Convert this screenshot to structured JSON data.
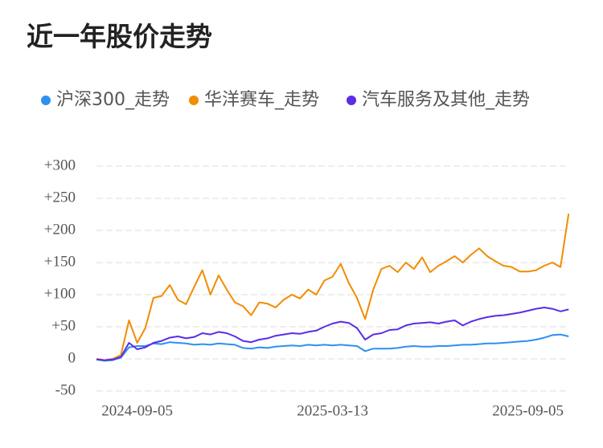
{
  "chart_data": {
    "type": "line",
    "title": "近一年股价走势",
    "categories": [
      null,
      null,
      null,
      null,
      null,
      "2024-09-05",
      null,
      null,
      null,
      null,
      null,
      null,
      null,
      null,
      null,
      null,
      null,
      null,
      null,
      null,
      null,
      null,
      null,
      null,
      null,
      null,
      null,
      null,
      null,
      "2025-03-13",
      null,
      null,
      null,
      null,
      null,
      null,
      null,
      null,
      null,
      null,
      null,
      null,
      null,
      null,
      null,
      null,
      null,
      null,
      null,
      null,
      null,
      null,
      null,
      "2025-09-05",
      null,
      null,
      null,
      null,
      null
    ],
    "series": [
      {
        "name": "沪深300_走势",
        "color": "#2f8ff0",
        "values": [
          -1,
          -3,
          -2,
          2,
          18,
          20,
          20,
          24,
          23,
          26,
          25,
          24,
          22,
          23,
          22,
          24,
          23,
          22,
          17,
          16,
          18,
          17,
          19,
          20,
          21,
          20,
          22,
          21,
          22,
          21,
          22,
          21,
          20,
          12,
          16,
          16,
          16,
          17,
          19,
          20,
          19,
          19,
          20,
          20,
          21,
          22,
          22,
          23,
          24,
          24,
          25,
          26,
          27,
          28,
          30,
          33,
          37,
          38,
          35
        ]
      },
      {
        "name": "华洋赛车_走势",
        "color": "#f28c00",
        "values": [
          0,
          -2,
          0,
          6,
          60,
          25,
          48,
          95,
          98,
          115,
          92,
          85,
          112,
          138,
          100,
          130,
          108,
          88,
          82,
          68,
          88,
          86,
          80,
          92,
          100,
          94,
          108,
          100,
          122,
          128,
          148,
          118,
          95,
          62,
          108,
          140,
          145,
          135,
          150,
          140,
          158,
          135,
          145,
          152,
          160,
          150,
          162,
          172,
          160,
          152,
          145,
          143,
          136,
          136,
          138,
          145,
          150,
          143,
          226
        ]
      },
      {
        "name": "汽车服务及其他_走势",
        "color": "#5a2de6",
        "values": [
          -1,
          -2,
          -1,
          3,
          25,
          15,
          18,
          25,
          28,
          33,
          35,
          32,
          34,
          40,
          38,
          42,
          40,
          35,
          28,
          26,
          30,
          32,
          36,
          38,
          40,
          39,
          42,
          44,
          50,
          55,
          58,
          56,
          48,
          30,
          38,
          40,
          45,
          46,
          52,
          55,
          56,
          57,
          55,
          58,
          60,
          52,
          58,
          62,
          65,
          67,
          68,
          70,
          72,
          75,
          78,
          80,
          78,
          74,
          77
        ]
      }
    ],
    "ylim": [
      -50,
      300
    ],
    "yticks": [
      {
        "value": 300,
        "label": "+300"
      },
      {
        "value": 250,
        "label": "+250"
      },
      {
        "value": 200,
        "label": "+200"
      },
      {
        "value": 150,
        "label": "+150"
      },
      {
        "value": 100,
        "label": "+100"
      },
      {
        "value": 50,
        "label": "+50"
      },
      0,
      -50
    ],
    "grid": true
  }
}
